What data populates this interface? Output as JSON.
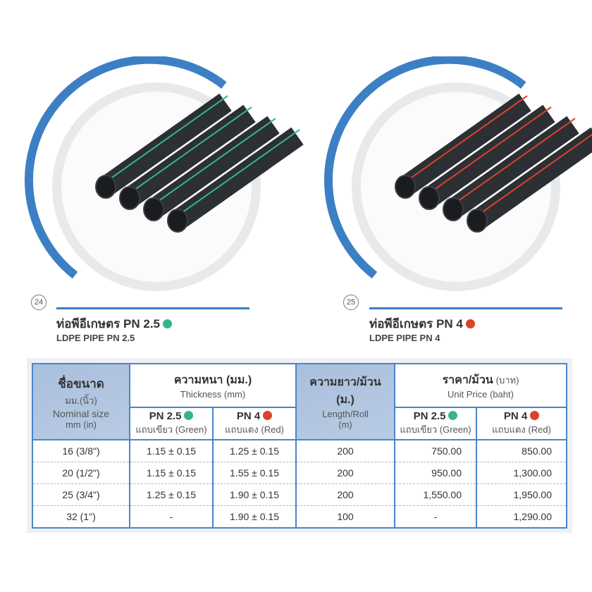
{
  "products": [
    {
      "number": "24",
      "title_th": "ท่อพีอีเกษตร PN 2.5",
      "title_en": "LDPE PIPE PN 2.5",
      "stripe_color": "#35b58a",
      "image": "black-pipes-green-stripe"
    },
    {
      "number": "25",
      "title_th": "ท่อพีอีเกษตร PN 4",
      "title_en": "LDPE PIPE PN 4",
      "stripe_color": "#d9432b",
      "image": "black-pipes-red-stripe"
    }
  ],
  "table": {
    "size_th": "ชื่อขนาด",
    "size_unit_th": "มม.(นิ้ว)",
    "size_en1": "Nominal size",
    "size_en2": "mm (in)",
    "thick_th": "ความหนา (มม.)",
    "thick_en": "Thickness (mm)",
    "len_th": "ความยาว/ม้วน",
    "len_th2": "(ม.)",
    "len_en1": "Length/Roll",
    "len_en2": "(m)",
    "price_th": "ราคา/ม้วน",
    "price_unit_th": "(บาท)",
    "price_en": "Unit Price (baht)",
    "pn25": "PN 2.5",
    "pn4": "PN 4",
    "green": "แถบเขียว (Green)",
    "red": "แถบแดง (Red)",
    "rows": [
      [
        "16 (3/8\")",
        "1.15 ± 0.15",
        "1.25 ± 0.15",
        "200",
        "750.00",
        "850.00"
      ],
      [
        "20 (1/2\")",
        "1.15 ± 0.15",
        "1.55 ± 0.15",
        "200",
        "950.00",
        "1,300.00"
      ],
      [
        "25 (3/4\")",
        "1.25 ± 0.15",
        "1.90 ± 0.15",
        "200",
        "1,550.00",
        "1,950.00"
      ],
      [
        "32 (1\")",
        "-",
        "1.90 ± 0.15",
        "100",
        "-",
        "1,290.00"
      ]
    ]
  }
}
